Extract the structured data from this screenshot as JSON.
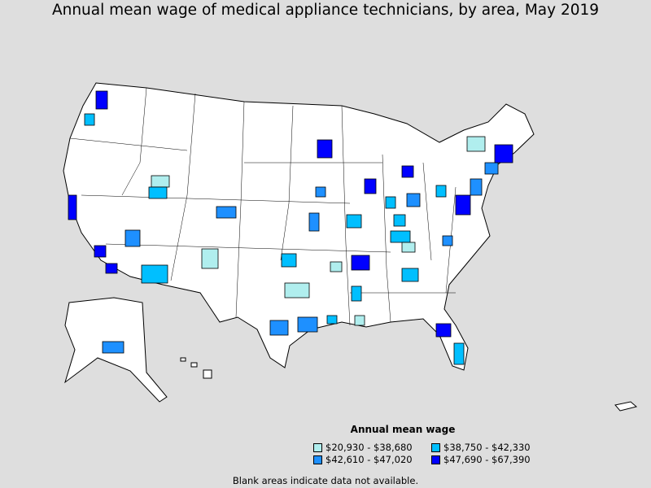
{
  "title": "Annual mean wage of medical appliance technicians, by area, May 2019",
  "legend": {
    "title": "Annual mean wage",
    "items": [
      {
        "label": "$20,930 - $38,680",
        "color": "#b0eeee"
      },
      {
        "label": "$38,750 - $42,330",
        "color": "#00bfff"
      },
      {
        "label": "$42,610 - $47,020",
        "color": "#1e90ff"
      },
      {
        "label": "$47,690 - $67,390",
        "color": "#0000ff"
      }
    ]
  },
  "note": "Blank areas indicate data not available."
}
